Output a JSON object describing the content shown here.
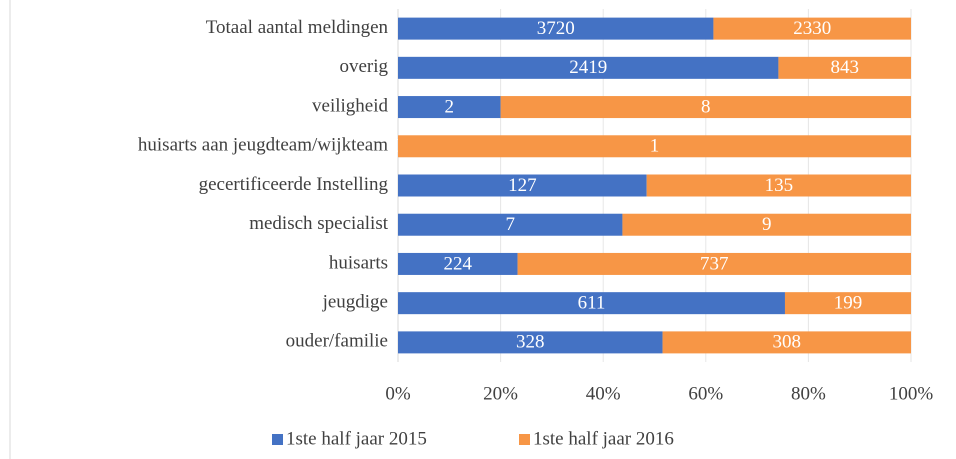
{
  "chart_data": {
    "type": "bar",
    "orientation": "horizontal",
    "stacked": "percent",
    "categories": [
      "Totaal aantal meldingen",
      "overig",
      "veiligheid",
      "huisarts aan jeugdteam/wijkteam",
      "gecertificeerde Instelling",
      "medisch specialist",
      "huisarts",
      "jeugdige",
      "ouder/familie"
    ],
    "series": [
      {
        "name": "1ste half jaar 2015",
        "color": "#4472c4",
        "values": [
          3720,
          2419,
          2,
          0,
          127,
          7,
          224,
          611,
          328
        ]
      },
      {
        "name": "1ste half jaar 2016",
        "color": "#f79646",
        "values": [
          2330,
          843,
          8,
          1,
          135,
          9,
          737,
          199,
          308
        ]
      }
    ],
    "xlim": [
      0,
      100
    ],
    "xticks": [
      {
        "value": 0,
        "label": "0%"
      },
      {
        "value": 20,
        "label": "20%"
      },
      {
        "value": 40,
        "label": "40%"
      },
      {
        "value": 60,
        "label": "60%"
      },
      {
        "value": 80,
        "label": "80%"
      },
      {
        "value": 100,
        "label": "100%"
      }
    ],
    "grid": true,
    "legend": "bottom"
  }
}
